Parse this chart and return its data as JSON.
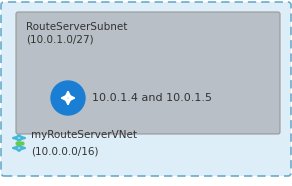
{
  "outer_bg": "#ddeef8",
  "outer_border": "#6aabcc",
  "inner_bg": "#b8bfc6",
  "inner_border": "#999999",
  "subnet_title": "RouteServerSubnet",
  "subnet_cidr": "(10.0.1.0/27)",
  "ip_text": "10.0.1.4 and 10.0.1.5",
  "vnet_title": "myRouteServerVNet",
  "vnet_cidr": "(10.0.0.0/16)",
  "icon_blue": "#1a7fd4",
  "icon_light_blue": "#5bb8f5",
  "vnet_icon_color": "#44b8d8",
  "vnet_dot_color": "#66cc44",
  "text_dark": "#333333",
  "fs_label": 7.5,
  "fs_vnet": 7.5,
  "fig_w": 2.92,
  "fig_h": 1.86,
  "dpi": 100
}
